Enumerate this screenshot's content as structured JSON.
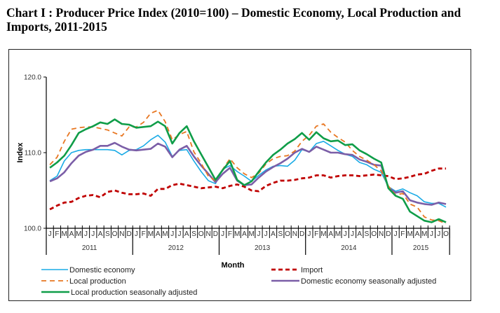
{
  "page": {
    "title": "Chart I : Producer Price Index (2010=100) –  Domestic Economy, Local Production and Imports, 2011-2015"
  },
  "chart_data": {
    "type": "line",
    "title": "Chart I : Producer Price Index (2010=100) – Domestic Economy, Local Production and Imports, 2011-2015",
    "xlabel": "Month",
    "ylabel": "Index",
    "ylim": [
      100,
      120
    ],
    "yticks": [
      "100.0",
      "110.0",
      "120.0"
    ],
    "ytick_values": [
      100,
      110,
      120
    ],
    "grid": false,
    "legend_position": "bottom",
    "years": [
      {
        "label": "2011",
        "months": [
          "J",
          "F",
          "M",
          "A",
          "M",
          "J",
          "J",
          "A",
          "S",
          "O",
          "N",
          "D"
        ]
      },
      {
        "label": "2012",
        "months": [
          "J",
          "F",
          "M",
          "A",
          "M",
          "J",
          "J",
          "A",
          "S",
          "O",
          "N",
          "D"
        ]
      },
      {
        "label": "2013",
        "months": [
          "J",
          "F",
          "M",
          "A",
          "M",
          "J",
          "J",
          "A",
          "S",
          "O",
          "N",
          "D"
        ]
      },
      {
        "label": "2014",
        "months": [
          "J",
          "F",
          "M",
          "A",
          "M",
          "J",
          "J",
          "A",
          "S",
          "O",
          "N",
          "D"
        ]
      },
      {
        "label": "2015",
        "months": [
          "J",
          "F",
          "M",
          "A",
          "M",
          "J",
          "J",
          "O"
        ]
      }
    ],
    "series": [
      {
        "name": "Domestic economy",
        "color": "#1aabe6",
        "style": "solid",
        "values": [
          106.3,
          106.9,
          108.9,
          110.0,
          110.3,
          110.4,
          110.4,
          110.4,
          110.4,
          110.3,
          109.7,
          110.3,
          110.4,
          110.9,
          111.7,
          112.3,
          111.4,
          109.5,
          110.3,
          110.4,
          108.9,
          107.5,
          106.3,
          105.9,
          107.8,
          108.3,
          107.5,
          106.9,
          106.2,
          107.0,
          107.7,
          108.2,
          108.3,
          108.2,
          109.0,
          110.4,
          110.1,
          111.2,
          111.5,
          110.9,
          110.3,
          109.8,
          109.5,
          108.7,
          108.4,
          107.8,
          107.4,
          105.5,
          104.9,
          105.2,
          104.7,
          104.3,
          103.5,
          103.3,
          103.3,
          102.8
        ]
      },
      {
        "name": "Local production",
        "color": "#e87722",
        "style": "dashed",
        "values": [
          108.4,
          109.4,
          111.5,
          113.1,
          113.3,
          113.4,
          113.4,
          113.2,
          113.0,
          112.6,
          112.2,
          113.4,
          113.4,
          114.0,
          115.2,
          115.6,
          114.1,
          111.7,
          112.4,
          112.8,
          110.1,
          108.6,
          106.9,
          106.3,
          107.8,
          109.2,
          108.0,
          107.2,
          106.7,
          107.3,
          108.5,
          109.2,
          109.5,
          109.6,
          110.2,
          111.5,
          112.3,
          113.5,
          113.8,
          112.7,
          112.0,
          111.4,
          110.3,
          109.5,
          109.0,
          108.4,
          107.6,
          105.6,
          104.4,
          104.6,
          103.2,
          102.8,
          101.5,
          101.1,
          101.0,
          100.6
        ]
      },
      {
        "name": "Local production seasonally adjusted",
        "color": "#0f9d48",
        "style": "solid-thick",
        "values": [
          108.0,
          108.7,
          109.6,
          111.0,
          112.6,
          113.1,
          113.5,
          114.0,
          113.8,
          114.4,
          113.8,
          113.7,
          113.3,
          113.4,
          113.5,
          114.1,
          113.5,
          111.2,
          112.6,
          113.5,
          111.5,
          109.8,
          108.1,
          106.4,
          107.7,
          108.9,
          106.4,
          105.7,
          106.2,
          107.5,
          108.7,
          109.7,
          110.4,
          111.2,
          111.8,
          112.6,
          111.7,
          112.7,
          111.9,
          111.5,
          111.6,
          111.0,
          111.1,
          110.3,
          109.8,
          109.2,
          108.7,
          105.3,
          104.3,
          103.9,
          102.2,
          101.6,
          101.0,
          100.8,
          101.2,
          100.8
        ]
      },
      {
        "name": "Import",
        "color": "#c00000",
        "style": "dashed-thick",
        "values": [
          102.5,
          103.0,
          103.4,
          103.5,
          104.0,
          104.3,
          104.4,
          104.1,
          104.8,
          105.0,
          104.7,
          104.5,
          104.5,
          104.6,
          104.3,
          105.2,
          105.2,
          105.7,
          105.9,
          105.7,
          105.5,
          105.3,
          105.4,
          105.5,
          105.3,
          105.6,
          105.8,
          105.5,
          105.0,
          104.9,
          105.6,
          106.0,
          106.3,
          106.3,
          106.4,
          106.6,
          106.7,
          107.0,
          107.0,
          106.7,
          106.9,
          107.0,
          107.0,
          106.9,
          107.0,
          107.1,
          107.0,
          106.9,
          106.5,
          106.6,
          106.8,
          107.1,
          107.2,
          107.6,
          107.9,
          107.9
        ]
      },
      {
        "name": "Domestic economy seasonally adjusted",
        "color": "#7b5ea7",
        "style": "solid-thick",
        "values": [
          106.2,
          106.6,
          107.4,
          108.6,
          109.6,
          110.1,
          110.4,
          110.9,
          110.9,
          111.3,
          110.8,
          110.4,
          110.3,
          110.4,
          110.5,
          111.2,
          110.8,
          109.4,
          110.4,
          110.9,
          109.5,
          108.3,
          107.2,
          106.1,
          107.2,
          108.0,
          106.3,
          105.7,
          105.8,
          106.7,
          107.5,
          108.1,
          108.6,
          109.2,
          110.0,
          110.5,
          110.1,
          110.8,
          110.4,
          110.0,
          110.0,
          109.8,
          109.7,
          109.1,
          108.8,
          108.4,
          108.3,
          105.4,
          104.7,
          104.9,
          103.7,
          103.4,
          103.2,
          103.1,
          103.4,
          103.2
        ]
      }
    ]
  }
}
